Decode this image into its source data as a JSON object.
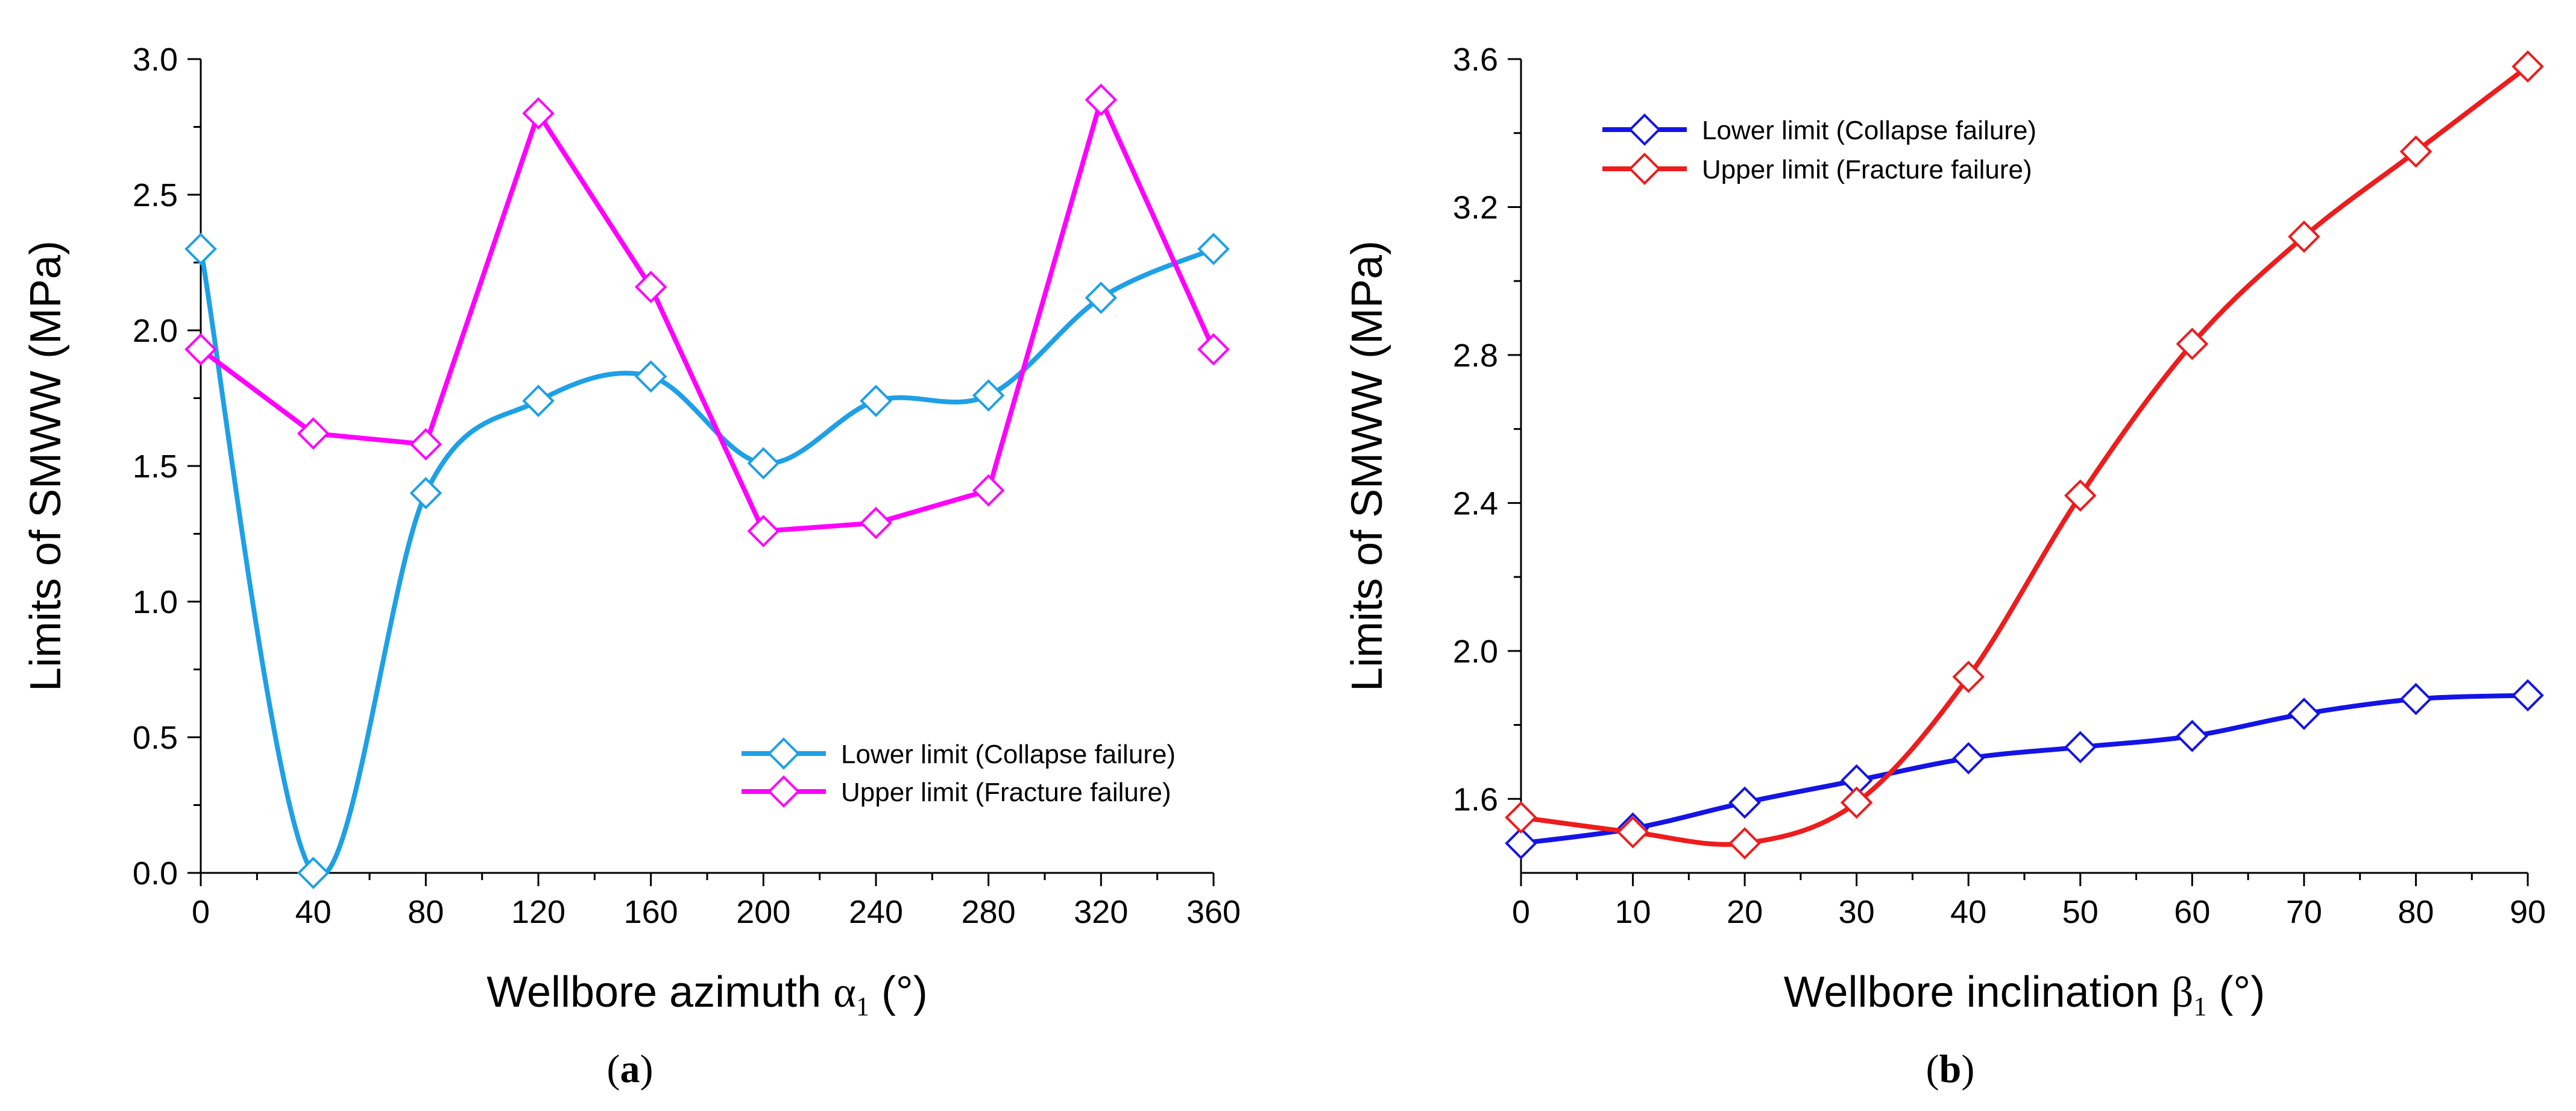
{
  "chart_data": [
    {
      "type": "line",
      "panel_label": {
        "open": "(",
        "letter": "a",
        "close": ")"
      },
      "title": "",
      "xlabel": {
        "text": "Wellbore azimuth",
        "symbol": "α",
        "subscript": "1",
        "unit": "(°)"
      },
      "ylabel": "Limits of SMWW  (MPa)",
      "xlim": [
        0,
        360
      ],
      "ylim": [
        0,
        3.0
      ],
      "xticks": [
        0,
        40,
        80,
        120,
        160,
        200,
        240,
        280,
        320,
        360
      ],
      "yticks": [
        0,
        0.5,
        1.0,
        1.5,
        2.0,
        2.5,
        3.0
      ],
      "ytick_labels": [
        "0.0",
        "0.5",
        "1.0",
        "1.5",
        "2.0",
        "2.5",
        "3.0"
      ],
      "grid": false,
      "legend_position": "bottom-right",
      "x": [
        0,
        40,
        80,
        120,
        160,
        200,
        240,
        280,
        320,
        360
      ],
      "series": [
        {
          "name": "Lower limit (Collapse failure)",
          "color": "#1ea0e6",
          "smooth": true,
          "values": [
            2.3,
            0.0,
            1.4,
            1.74,
            1.83,
            1.51,
            1.74,
            1.76,
            2.12,
            2.3
          ]
        },
        {
          "name": "Upper limit (Fracture failure)",
          "color": "#ff00ff",
          "smooth": false,
          "values": [
            1.93,
            1.62,
            1.58,
            2.8,
            2.16,
            1.26,
            1.29,
            1.41,
            2.85,
            1.93
          ]
        }
      ]
    },
    {
      "type": "line",
      "panel_label": {
        "open": "(",
        "letter": "b",
        "close": ")"
      },
      "title": "",
      "xlabel": {
        "text": "Wellbore inclination",
        "symbol": "β",
        "subscript": "1",
        "unit": "(°)"
      },
      "ylabel": "Limits of SMWW  (MPa)",
      "xlim": [
        0,
        90
      ],
      "ylim": [
        1.4,
        3.6
      ],
      "xticks": [
        0,
        10,
        20,
        30,
        40,
        50,
        60,
        70,
        80,
        90
      ],
      "yticks": [
        1.6,
        2.0,
        2.4,
        2.8,
        3.2,
        3.6
      ],
      "ytick_labels": [
        "1.6",
        "2.0",
        "2.4",
        "2.8",
        "3.2",
        "3.6"
      ],
      "grid": false,
      "legend_position": "top-left",
      "x": [
        0,
        10,
        20,
        30,
        40,
        50,
        60,
        70,
        80,
        90
      ],
      "series": [
        {
          "name": "Lower limit (Collapse failure)",
          "color": "#1414e6",
          "smooth": true,
          "values": [
            1.48,
            1.52,
            1.59,
            1.65,
            1.71,
            1.74,
            1.77,
            1.83,
            1.87,
            1.88
          ]
        },
        {
          "name": "Upper limit (Fracture failure)",
          "color": "#ee1c1c",
          "smooth": true,
          "values": [
            1.55,
            1.51,
            1.48,
            1.59,
            1.93,
            2.42,
            2.83,
            3.12,
            3.35,
            3.58
          ]
        }
      ]
    }
  ]
}
